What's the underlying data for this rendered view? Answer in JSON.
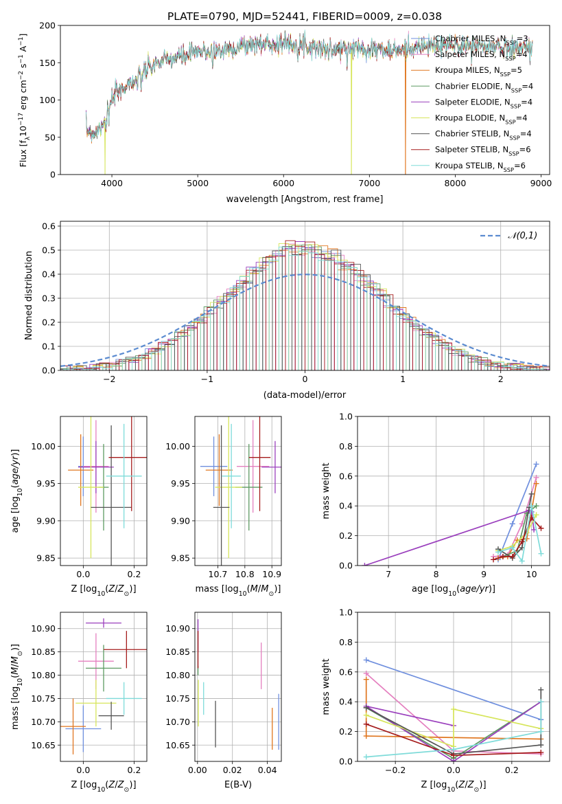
{
  "page_title": "PLATE=0790, MJD=52441, FIBERID=0009, z=0.038",
  "colors": {
    "chabrier_miles": "#6f8fde",
    "salpeter_miles": "#e47fbf",
    "kroupa_miles": "#e0761f",
    "chabrier_elodie": "#5d9a62",
    "salpeter_elodie": "#9a3fbd",
    "kroupa_elodie": "#d6e55a",
    "chabrier_stelib": "#555555",
    "salpeter_stelib": "#a51c1c",
    "kroupa_stelib": "#7edbd9"
  },
  "chart_data": [
    {
      "id": "spectrum",
      "type": "line",
      "xlabel": "wavelength [Angstrom, rest frame]",
      "ylabel": "Flux [f",
      "xlim": [
        3400,
        9100
      ],
      "ylim": [
        0,
        200
      ],
      "xticks": [
        "4000",
        "5000",
        "6000",
        "7000",
        "8000",
        "9000"
      ],
      "yticks": [
        "0",
        "50",
        "100",
        "150",
        "200"
      ],
      "legend": "top-right",
      "legend_entries": [
        {
          "name": "Chabrier MILES, N",
          "sub": "SSP",
          "n": "=3"
        },
        {
          "name": "Salpeter MILES, N",
          "sub": "SSP",
          "n": "=4"
        },
        {
          "name": "Kroupa MILES, N",
          "sub": "SSP",
          "n": "=5"
        },
        {
          "name": "Chabrier ELODIE, N",
          "sub": "SSP",
          "n": "=4"
        },
        {
          "name": "Salpeter ELODIE, N",
          "sub": "SSP",
          "n": "=4"
        },
        {
          "name": "Kroupa ELODIE, N",
          "sub": "SSP",
          "n": "=4"
        },
        {
          "name": "Chabrier STELIB, N",
          "sub": "SSP",
          "n": "=4"
        },
        {
          "name": "Salpeter STELIB, N",
          "sub": "SSP",
          "n": "=6"
        },
        {
          "name": "Kroupa STELIB, N",
          "sub": "SSP",
          "n": "=6"
        }
      ],
      "continuum": {
        "x": [
          3700,
          3800,
          3900,
          4000,
          4100,
          4200,
          4300,
          4400,
          4500,
          4700,
          4900,
          5100,
          5300,
          5500,
          5700,
          5900,
          6100,
          6300,
          6500,
          6700,
          6900,
          7100,
          7300,
          7500,
          7700,
          7900,
          8100,
          8300,
          8500,
          8700,
          8900
        ],
        "y": [
          60,
          55,
          70,
          100,
          115,
          122,
          128,
          140,
          148,
          155,
          162,
          165,
          168,
          172,
          175,
          176,
          176,
          172,
          168,
          168,
          170,
          168,
          165,
          170,
          172,
          173,
          173,
          172,
          171,
          170,
          171
        ]
      },
      "dropouts": [
        {
          "x": 3920,
          "series": "kroupa_elodie",
          "to": 0
        },
        {
          "x": 6790,
          "series": "kroupa_elodie",
          "to": 0
        },
        {
          "x": 7420,
          "series": "kroupa_miles",
          "to": 0
        }
      ]
    },
    {
      "id": "residuals",
      "type": "histogram",
      "xlabel": "(data-model)/error",
      "ylabel": "Normed distribution",
      "xlim": [
        -2.5,
        2.5
      ],
      "ylim": [
        0,
        0.62
      ],
      "xticks": [
        "−2",
        "−1",
        "0",
        "1",
        "2"
      ],
      "yticks": [
        "0.0",
        "0.1",
        "0.2",
        "0.3",
        "0.4",
        "0.5",
        "0.6"
      ],
      "bin_width": 0.1,
      "legend": "top-right",
      "normal_label": "𝒩(0,1)",
      "normal": {
        "mean": 0,
        "sigma": 1
      }
    },
    {
      "id": "age_vs_Z",
      "type": "errorbar",
      "xlabel": "Z [log",
      "ylabel": "age  [log",
      "xlim": [
        -0.09,
        0.25
      ],
      "ylim": [
        9.84,
        10.04
      ],
      "xticks": [
        "0.0",
        "0.2"
      ],
      "yticks": [
        "9.85",
        "9.90",
        "9.95",
        "10.00"
      ],
      "points": [
        {
          "series": "chabrier_miles",
          "x": 0.0,
          "xerr": 0.02,
          "y": 9.973,
          "yerr": 0.04
        },
        {
          "series": "salpeter_miles",
          "x": 0.05,
          "xerr": 0.05,
          "y": 9.973,
          "yerr": 0.062
        },
        {
          "series": "kroupa_miles",
          "x": -0.01,
          "xerr": 0.05,
          "y": 9.968,
          "yerr": 0.048
        },
        {
          "series": "chabrier_elodie",
          "x": 0.08,
          "xerr": 0.02,
          "y": 9.945,
          "yerr": 0.058
        },
        {
          "series": "salpeter_elodie",
          "x": 0.05,
          "xerr": 0.07,
          "y": 9.972,
          "yerr": 0.035
        },
        {
          "series": "kroupa_elodie",
          "x": 0.03,
          "xerr": 0.05,
          "y": 9.945,
          "yerr": 0.095
        },
        {
          "series": "chabrier_stelib",
          "x": 0.11,
          "xerr": 0.08,
          "y": 9.918,
          "yerr": 0.11
        },
        {
          "series": "salpeter_stelib",
          "x": 0.19,
          "xerr": 0.09,
          "y": 9.985,
          "yerr": 0.072
        },
        {
          "series": "kroupa_stelib",
          "x": 0.16,
          "xerr": 0.07,
          "y": 9.96,
          "yerr": 0.07
        }
      ]
    },
    {
      "id": "age_vs_mass",
      "type": "errorbar",
      "xlabel": "mass [log",
      "ylabel": "",
      "xlim": [
        10.615,
        10.935
      ],
      "ylim": [
        9.84,
        10.04
      ],
      "xticks": [
        "10.7",
        "10.8",
        "10.9"
      ],
      "yticks": [
        "9.85",
        "9.90",
        "9.95",
        "10.00"
      ],
      "points": [
        {
          "series": "chabrier_miles",
          "x": 10.685,
          "xerr": 0.05,
          "y": 9.973,
          "yerr": 0.04
        },
        {
          "series": "salpeter_miles",
          "x": 10.83,
          "xerr": 0.06,
          "y": 9.973,
          "yerr": 0.062
        },
        {
          "series": "kroupa_miles",
          "x": 10.705,
          "xerr": 0.05,
          "y": 9.968,
          "yerr": 0.048
        },
        {
          "series": "chabrier_elodie",
          "x": 10.815,
          "xerr": 0.05,
          "y": 9.945,
          "yerr": 0.058
        },
        {
          "series": "salpeter_elodie",
          "x": 10.912,
          "xerr": 0.05,
          "y": 9.972,
          "yerr": 0.035
        },
        {
          "series": "kroupa_elodie",
          "x": 10.74,
          "xerr": 0.05,
          "y": 9.945,
          "yerr": 0.095
        },
        {
          "series": "chabrier_stelib",
          "x": 10.713,
          "xerr": 0.03,
          "y": 9.918,
          "yerr": 0.11
        },
        {
          "series": "salpeter_stelib",
          "x": 10.855,
          "xerr": 0.04,
          "y": 9.985,
          "yerr": 0.072
        },
        {
          "series": "kroupa_stelib",
          "x": 10.75,
          "xerr": 0.035,
          "y": 9.96,
          "yerr": 0.07
        }
      ]
    },
    {
      "id": "mass_weight_vs_age",
      "type": "line",
      "xlabel": "age  [log",
      "ylabel": "mass weight",
      "xlim": [
        6.35,
        10.38
      ],
      "ylim": [
        0,
        1
      ],
      "xticks": [
        "7",
        "8",
        "9",
        "10"
      ],
      "yticks": [
        "0.0",
        "0.2",
        "0.4",
        "0.6",
        "0.8",
        "1.0"
      ],
      "series": [
        {
          "series": "chabrier_miles",
          "x": [
            9.3,
            9.6,
            10.1
          ],
          "y": [
            0.04,
            0.28,
            0.68
          ]
        },
        {
          "series": "salpeter_miles",
          "x": [
            9.2,
            9.5,
            9.8,
            10.1
          ],
          "y": [
            0.06,
            0.07,
            0.28,
            0.59
          ]
        },
        {
          "series": "kroupa_miles",
          "x": [
            9.3,
            9.5,
            9.7,
            9.9,
            10.1
          ],
          "y": [
            0.05,
            0.06,
            0.17,
            0.18,
            0.55
          ]
        },
        {
          "series": "chabrier_elodie",
          "x": [
            9.4,
            9.7,
            9.9,
            10.1
          ],
          "y": [
            0.06,
            0.1,
            0.35,
            0.4
          ]
        },
        {
          "series": "salpeter_elodie",
          "x": [
            6.5,
            9.95,
            10.0,
            10.05
          ],
          "y": [
            0.0,
            0.37,
            0.36,
            0.24
          ]
        },
        {
          "series": "kroupa_elodie",
          "x": [
            9.3,
            9.6,
            9.9,
            10.1
          ],
          "y": [
            0.1,
            0.13,
            0.22,
            0.34
          ]
        },
        {
          "series": "chabrier_stelib",
          "x": [
            9.3,
            9.6,
            9.8,
            9.95,
            10.0
          ],
          "y": [
            0.11,
            0.05,
            0.12,
            0.39,
            0.48
          ]
        },
        {
          "series": "salpeter_stelib",
          "x": [
            9.2,
            9.4,
            9.6,
            9.8,
            10.0,
            10.2
          ],
          "y": [
            0.04,
            0.06,
            0.06,
            0.16,
            0.32,
            0.25
          ]
        },
        {
          "series": "kroupa_stelib",
          "x": [
            9.3,
            9.6,
            9.8,
            10.0,
            10.2
          ],
          "y": [
            0.09,
            0.12,
            0.03,
            0.4,
            0.08
          ]
        }
      ]
    },
    {
      "id": "mass_vs_Z",
      "type": "errorbar",
      "xlabel": "Z [log",
      "ylabel": "mass [log",
      "xlim": [
        -0.09,
        0.25
      ],
      "ylim": [
        10.615,
        10.935
      ],
      "xticks": [
        "0.0",
        "0.2"
      ],
      "yticks": [
        "10.65",
        "10.70",
        "10.75",
        "10.80",
        "10.85",
        "10.90"
      ],
      "points": [
        {
          "series": "chabrier_miles",
          "x": 0.0,
          "xerr": 0.07,
          "y": 10.685,
          "yerr": 0.05
        },
        {
          "series": "salpeter_miles",
          "x": 0.05,
          "xerr": 0.07,
          "y": 10.83,
          "yerr": 0.06
        },
        {
          "series": "kroupa_miles",
          "x": -0.04,
          "xerr": 0.05,
          "y": 10.69,
          "yerr": 0.06
        },
        {
          "series": "chabrier_elodie",
          "x": 0.08,
          "xerr": 0.07,
          "y": 10.815,
          "yerr": 0.05
        },
        {
          "series": "salpeter_elodie",
          "x": 0.08,
          "xerr": 0.07,
          "y": 10.912,
          "yerr": 0.01
        },
        {
          "series": "kroupa_elodie",
          "x": 0.05,
          "xerr": 0.08,
          "y": 10.74,
          "yerr": 0.05
        },
        {
          "series": "chabrier_stelib",
          "x": 0.11,
          "xerr": 0.05,
          "y": 10.713,
          "yerr": 0.03
        },
        {
          "series": "salpeter_stelib",
          "x": 0.17,
          "xerr": 0.09,
          "y": 10.855,
          "yerr": 0.04
        },
        {
          "series": "kroupa_stelib",
          "x": 0.16,
          "xerr": 0.07,
          "y": 10.75,
          "yerr": 0.035
        }
      ]
    },
    {
      "id": "mass_vs_ebv",
      "type": "errorbar",
      "xlabel": "E(B-V)",
      "ylabel": "",
      "xlim": [
        -0.0015,
        0.048
      ],
      "ylim": [
        10.615,
        10.935
      ],
      "xticks": [
        "0.00",
        "0.02",
        "0.04"
      ],
      "yticks": [
        "10.65",
        "10.70",
        "10.75",
        "10.80",
        "10.85",
        "10.90"
      ],
      "points": [
        {
          "series": "chabrier_miles",
          "x": 0.0465,
          "y": 10.7,
          "yerr": 0.06
        },
        {
          "series": "salpeter_miles",
          "x": 0.0365,
          "y": 10.82,
          "yerr": 0.05
        },
        {
          "series": "kroupa_miles",
          "x": 0.0428,
          "y": 10.685,
          "yerr": 0.045
        },
        {
          "series": "chabrier_elodie",
          "x": 0.0003,
          "y": 10.81,
          "yerr": 0.01
        },
        {
          "series": "salpeter_elodie",
          "x": 0.0003,
          "y": 10.885,
          "yerr": 0.035
        },
        {
          "series": "kroupa_elodie",
          "x": 0.0005,
          "y": 10.74,
          "yerr": 0.05
        },
        {
          "series": "chabrier_stelib",
          "x": 0.0103,
          "y": 10.695,
          "yerr": 0.05
        },
        {
          "series": "salpeter_stelib",
          "x": 0.0003,
          "y": 10.855,
          "yerr": 0.04
        },
        {
          "series": "kroupa_stelib",
          "x": 0.0035,
          "y": 10.75,
          "yerr": 0.035
        }
      ]
    },
    {
      "id": "mass_weight_vs_Z",
      "type": "line",
      "xlabel": "Z [log",
      "ylabel": "mass weight",
      "xlim": [
        -0.33,
        0.33
      ],
      "ylim": [
        0,
        1
      ],
      "xticks": [
        "−0.2",
        "0.0",
        "0.2"
      ],
      "yticks": [
        "0.0",
        "0.2",
        "0.4",
        "0.6",
        "0.8",
        "1.0"
      ],
      "series": [
        {
          "series": "chabrier_miles",
          "x": [
            -0.3,
            0.3
          ],
          "y": [
            0.68,
            0.28
          ]
        },
        {
          "series": "salpeter_miles",
          "x": [
            -0.3,
            0.0,
            0.3
          ],
          "y": [
            0.59,
            0.07,
            0.05
          ]
        },
        {
          "series": "kroupa_miles",
          "x": [
            -0.3,
            -0.3,
            0.3
          ],
          "y": [
            0.55,
            0.17,
            0.15
          ]
        },
        {
          "series": "chabrier_elodie",
          "x": [
            -0.3,
            0.0,
            0.3
          ],
          "y": [
            0.36,
            0.02,
            0.4
          ]
        },
        {
          "series": "salpeter_elodie",
          "x": [
            0.0,
            -0.3,
            0.0,
            0.3
          ],
          "y": [
            0.24,
            0.37,
            0.0,
            0.4
          ]
        },
        {
          "series": "kroupa_elodie",
          "x": [
            -0.3,
            0.0,
            0.0,
            0.3
          ],
          "y": [
            0.31,
            0.1,
            0.35,
            0.22
          ]
        },
        {
          "series": "chabrier_stelib",
          "x": [
            -0.3,
            0.0,
            0.3,
            0.3
          ],
          "y": [
            0.36,
            0.05,
            0.11,
            0.48
          ]
        },
        {
          "series": "salpeter_stelib",
          "x": [
            -0.3,
            0.0,
            0.3
          ],
          "y": [
            0.25,
            0.04,
            0.06
          ]
        },
        {
          "series": "kroupa_stelib",
          "x": [
            -0.3,
            0.0,
            0.3,
            0.3
          ],
          "y": [
            0.03,
            0.08,
            0.2,
            0.4
          ]
        }
      ]
    }
  ]
}
